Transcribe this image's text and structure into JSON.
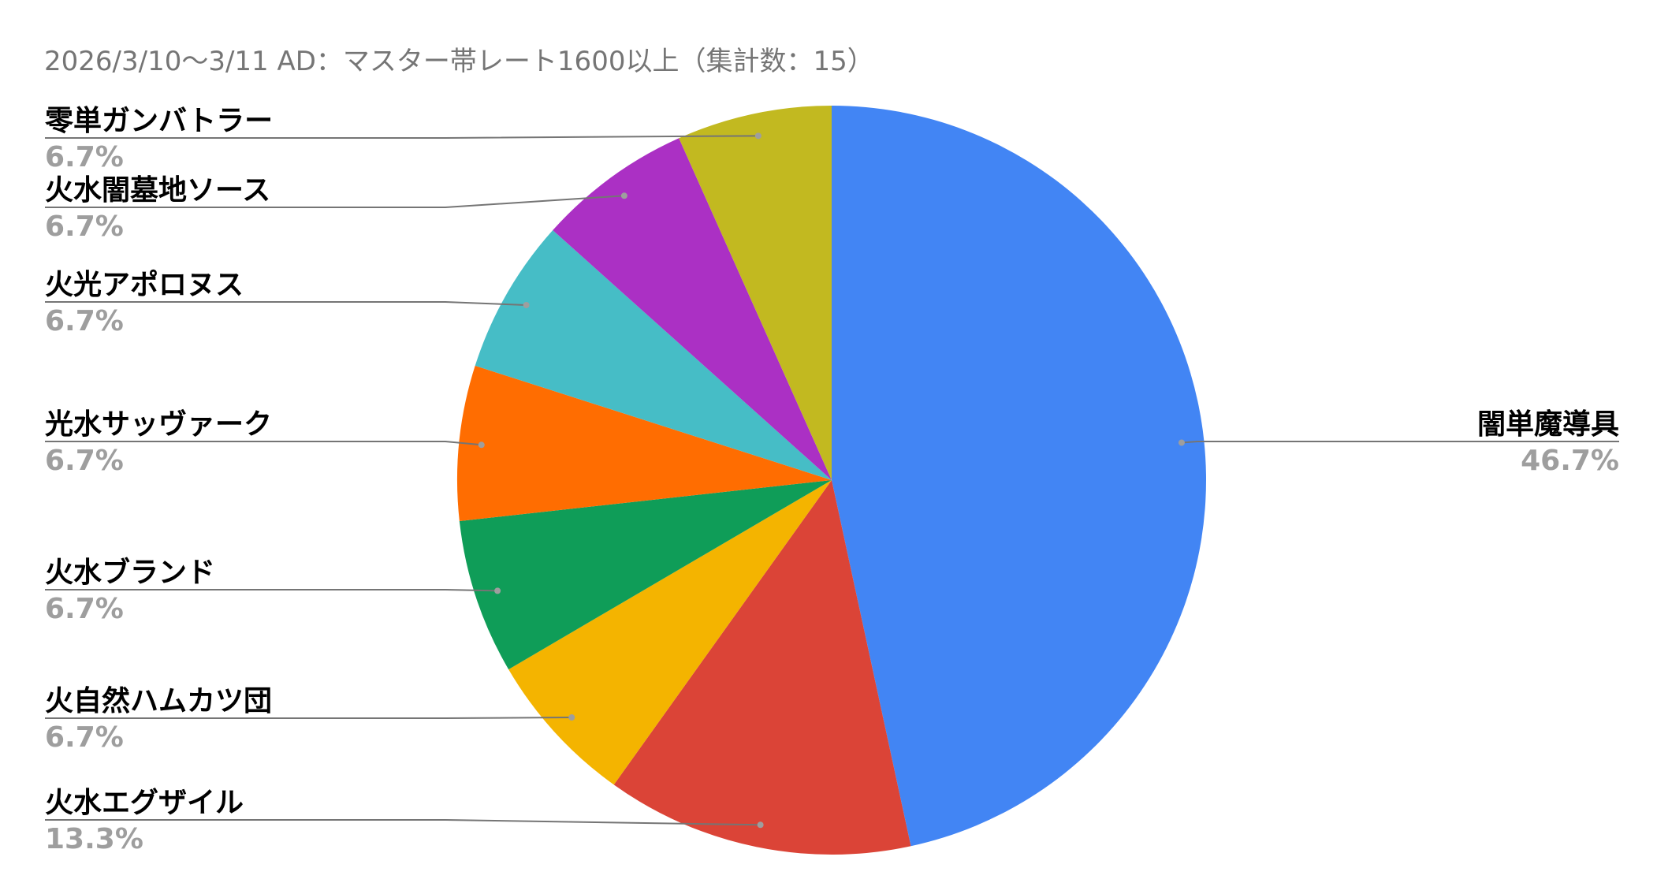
{
  "chart_data": {
    "type": "pie",
    "title": "2026/3/10〜3/11 AD：マスター帯レート1600以上（集計数：15）",
    "legend": "labels with leader lines",
    "slices": [
      {
        "label": "闇単魔導具",
        "value": 46.7,
        "value_label": "46.7%",
        "color": "#4285f4"
      },
      {
        "label": "火水エグザイル",
        "value": 13.3,
        "value_label": "13.3%",
        "color": "#db4437"
      },
      {
        "label": "火自然ハムカツ団",
        "value": 6.7,
        "value_label": "6.7%",
        "color": "#f4b400"
      },
      {
        "label": "火水ブランド",
        "value": 6.7,
        "value_label": "6.7%",
        "color": "#0f9d58"
      },
      {
        "label": "光水サッヴァーク",
        "value": 6.7,
        "value_label": "6.7%",
        "color": "#ff6d01"
      },
      {
        "label": "火光アポロヌス",
        "value": 6.7,
        "value_label": "6.7%",
        "color": "#46bdc6"
      },
      {
        "label": "火水闇墓地ソース",
        "value": 6.7,
        "value_label": "6.7%",
        "color": "#ab30c4"
      },
      {
        "label": "零単ガンバトラー",
        "value": 6.7,
        "value_label": "6.7%",
        "color": "#c2b920"
      }
    ]
  }
}
